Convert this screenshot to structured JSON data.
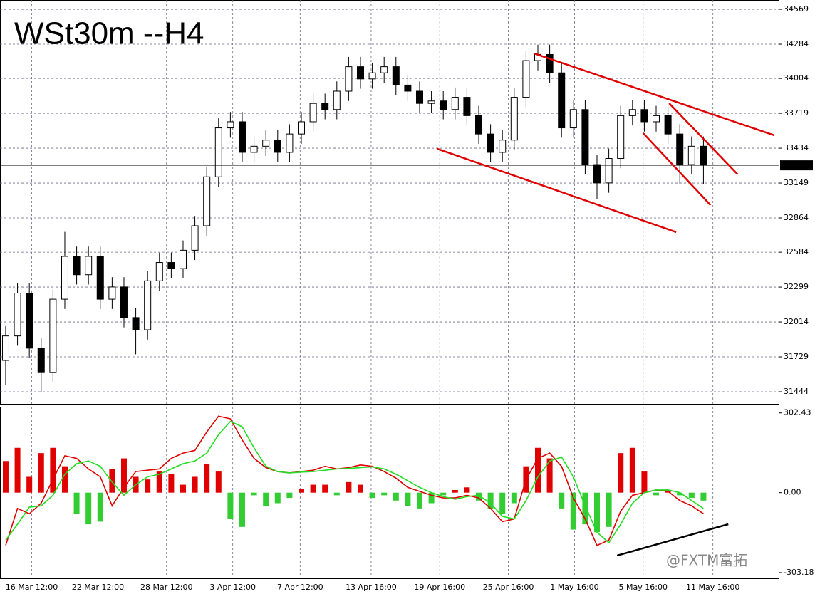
{
  "chart_data": [
    {
      "type": "candlestick",
      "title": "WSt30m --H4",
      "x": [
        0,
        1,
        2,
        3,
        4,
        5,
        6,
        7,
        8,
        9,
        10,
        11,
        12,
        13,
        14,
        15,
        16,
        17,
        18,
        19,
        20,
        21,
        22,
        23,
        24,
        25,
        26,
        27,
        28,
        29,
        30,
        31,
        32,
        33,
        34,
        35,
        36,
        37,
        38,
        39,
        40,
        41,
        42,
        43,
        44,
        45,
        46,
        47,
        48,
        49,
        50,
        51,
        52,
        53,
        54,
        55,
        56,
        57,
        58,
        59
      ],
      "open": [
        31700,
        31900,
        32250,
        31800,
        31600,
        32200,
        32550,
        32400,
        32550,
        32200,
        32300,
        32050,
        31950,
        32350,
        32500,
        32450,
        32600,
        32800,
        33200,
        33600,
        33650,
        33400,
        33450,
        33500,
        33400,
        33550,
        33650,
        33800,
        33750,
        33900,
        34100,
        34000,
        34050,
        34100,
        33950,
        33900,
        33800,
        33820,
        33750,
        33850,
        33700,
        33550,
        33400,
        33500,
        33850,
        34150,
        34200,
        34050,
        33600,
        33750,
        33300,
        33150,
        33350,
        33700,
        33750,
        33650,
        33700,
        33550,
        33300,
        33450
      ],
      "high": [
        31980,
        32330,
        32330,
        31880,
        32280,
        32750,
        32630,
        32630,
        32630,
        32380,
        32380,
        32130,
        32430,
        32580,
        32580,
        32680,
        32880,
        33280,
        33680,
        33730,
        33730,
        33530,
        33580,
        33580,
        33630,
        33730,
        33880,
        33880,
        33980,
        34180,
        34180,
        34130,
        34180,
        34180,
        34030,
        33980,
        33900,
        33900,
        33930,
        33930,
        33780,
        33630,
        33580,
        33930,
        34230,
        34280,
        34280,
        34130,
        33830,
        33830,
        33380,
        33430,
        33780,
        33830,
        33830,
        33780,
        33780,
        33630,
        33530,
        33530
      ],
      "low": [
        31500,
        31820,
        31720,
        31440,
        31520,
        32120,
        32320,
        32320,
        32120,
        32120,
        31970,
        31750,
        31870,
        32270,
        32370,
        32370,
        32520,
        32720,
        33120,
        33520,
        33320,
        33320,
        33370,
        33320,
        33320,
        33470,
        33570,
        33670,
        33670,
        33820,
        33920,
        33920,
        33970,
        33870,
        33820,
        33720,
        33720,
        33670,
        33670,
        33620,
        33470,
        33320,
        33320,
        33420,
        33770,
        34070,
        33970,
        33520,
        33520,
        33220,
        33020,
        33070,
        33270,
        33620,
        33570,
        33570,
        33470,
        33140,
        33220,
        33140
      ],
      "close": [
        31900,
        32250,
        31800,
        31600,
        32200,
        32550,
        32400,
        32550,
        32200,
        32300,
        32050,
        31950,
        32350,
        32500,
        32450,
        32600,
        32800,
        33200,
        33600,
        33650,
        33400,
        33450,
        33500,
        33400,
        33550,
        33650,
        33800,
        33750,
        33900,
        34100,
        34000,
        34050,
        34100,
        33950,
        33900,
        33800,
        33820,
        33750,
        33850,
        33700,
        33550,
        33400,
        33500,
        33850,
        34150,
        34200,
        34050,
        33600,
        33750,
        33300,
        33150,
        33350,
        33700,
        33750,
        33650,
        33700,
        33550,
        33300,
        33450,
        33294
      ],
      "ylim": [
        31345,
        34645
      ],
      "yticks": [
        34569,
        34284,
        34004,
        33719,
        33434,
        33149,
        32864,
        32584,
        32299,
        32014,
        31729,
        31444
      ],
      "current_price": 33294,
      "trendline_color": "#e00000",
      "trendlines": [
        {
          "x": [
            44.7,
            65.0
          ],
          "y": [
            34208,
            33539
          ]
        },
        {
          "x": [
            36.5,
            56.7
          ],
          "y": [
            33429,
            32748
          ]
        },
        {
          "x": [
            56.1,
            61.9
          ],
          "y": [
            33801,
            33219
          ]
        },
        {
          "x": [
            53.9,
            59.6
          ],
          "y": [
            33557,
            32969
          ]
        }
      ]
    },
    {
      "type": "macd",
      "histogram": [
        120,
        170,
        60,
        150,
        170,
        100,
        -80,
        -120,
        -110,
        90,
        130,
        60,
        50,
        80,
        70,
        30,
        60,
        110,
        80,
        -100,
        -130,
        -10,
        -50,
        -40,
        -20,
        15,
        30,
        30,
        -10,
        40,
        30,
        -20,
        -10,
        -30,
        -50,
        -60,
        -40,
        -10,
        10,
        20,
        -30,
        -60,
        -80,
        -40,
        100,
        170,
        130,
        -60,
        -140,
        -120,
        -150,
        -130,
        150,
        170,
        80,
        -10,
        10,
        -10,
        -20,
        -30
      ],
      "histogram_colors": [
        "#e00000",
        "#33cc33"
      ],
      "series": [
        {
          "color": "#e00000",
          "values": [
            -200,
            -60,
            -80,
            -40,
            50,
            140,
            130,
            90,
            60,
            -50,
            20,
            80,
            85,
            90,
            130,
            150,
            160,
            230,
            290,
            280,
            200,
            130,
            95,
            80,
            75,
            80,
            85,
            100,
            90,
            95,
            105,
            100,
            80,
            55,
            20,
            5,
            -10,
            -20,
            -20,
            -10,
            -20,
            -60,
            -110,
            -100,
            50,
            130,
            150,
            100,
            -20,
            -100,
            -200,
            -180,
            -70,
            -10,
            0,
            10,
            5,
            -30,
            -50,
            -80
          ]
        },
        {
          "color": "#22dd22",
          "values": [
            -180,
            -120,
            -55,
            -50,
            -10,
            70,
            110,
            120,
            100,
            40,
            -10,
            30,
            60,
            70,
            90,
            110,
            120,
            150,
            220,
            270,
            250,
            170,
            100,
            80,
            75,
            78,
            80,
            85,
            90,
            92,
            95,
            98,
            90,
            70,
            45,
            20,
            0,
            -15,
            -25,
            -15,
            -10,
            -40,
            -90,
            -100,
            -30,
            60,
            120,
            135,
            60,
            -50,
            -150,
            -190,
            -120,
            -40,
            0,
            10,
            10,
            0,
            -30,
            -60
          ]
        }
      ],
      "ylim": [
        -325,
        326
      ],
      "yticks": [
        302.43,
        {
          "value": 0,
          "label": "0.00"
        },
        -303.18
      ],
      "xlim": [
        -0.48,
        65.36
      ],
      "xticks": [
        {
          "value": 2.2,
          "label": "16 Mar 12:00"
        },
        {
          "value": 7.8,
          "label": "22 Mar 12:00"
        },
        {
          "value": 13.6,
          "label": "28 Mar 12:00"
        },
        {
          "value": 19.2,
          "label": "3 Apr 12:00"
        },
        {
          "value": 24.9,
          "label": "7 Apr 12:00"
        },
        {
          "value": 30.9,
          "label": "13 Apr 16:00"
        },
        {
          "value": 36.7,
          "label": "19 Apr 16:00"
        },
        {
          "value": 42.5,
          "label": "25 Apr 16:00"
        },
        {
          "value": 48.1,
          "label": "1 May 16:00"
        },
        {
          "value": 53.9,
          "label": "5 May 16:00"
        },
        {
          "value": 59.8,
          "label": "11 May 16:00"
        }
      ],
      "trendline_color": "#000000",
      "trendlines": [
        {
          "x": [
            51.7,
            61.1
          ],
          "y": [
            -238.5,
            -119.7
          ]
        }
      ]
    }
  ],
  "watermark": "@FXTM富拓"
}
